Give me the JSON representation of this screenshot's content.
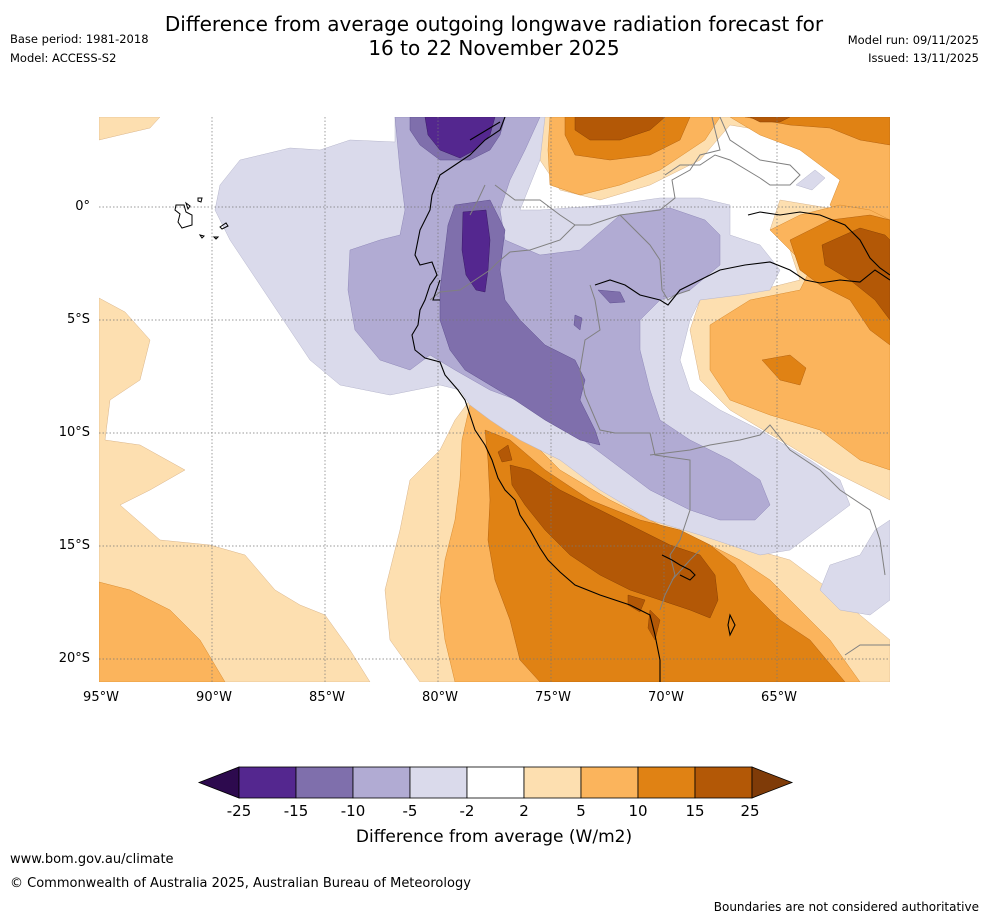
{
  "header": {
    "title_line1": "Difference from average outgoing longwave radiation forecast for",
    "title_line2": "16 to 22 November 2025",
    "base_period": "Base period: 1981-2018",
    "model": "Model: ACCESS-S2",
    "model_run": "Model run: 09/11/2025",
    "issued": "Issued: 13/11/2025"
  },
  "map": {
    "lat_labels": [
      "0°",
      "5°S",
      "10°S",
      "15°S",
      "20°S"
    ],
    "lon_labels": [
      "95°W",
      "90°W",
      "85°W",
      "80°W",
      "75°W",
      "70°W",
      "65°W"
    ]
  },
  "colorbar": {
    "ticks": [
      "-25",
      "-15",
      "-10",
      "-5",
      "-2",
      "2",
      "5",
      "10",
      "15",
      "25"
    ],
    "colors": [
      "#2d0a4e",
      "#54278f",
      "#7f6fac",
      "#b1abd3",
      "#dadaeb",
      "#ffffff",
      "#fddfb0",
      "#fbb45c",
      "#e08214",
      "#b35806",
      "#7f3b08"
    ],
    "label": "Difference from average (W/m2)"
  },
  "footer": {
    "website": "www.bom.gov.au/climate",
    "copyright": "© Commonwealth of Australia 2025, Australian Bureau of Meteorology",
    "disclaimer": "Boundaries are not considered authoritative"
  }
}
